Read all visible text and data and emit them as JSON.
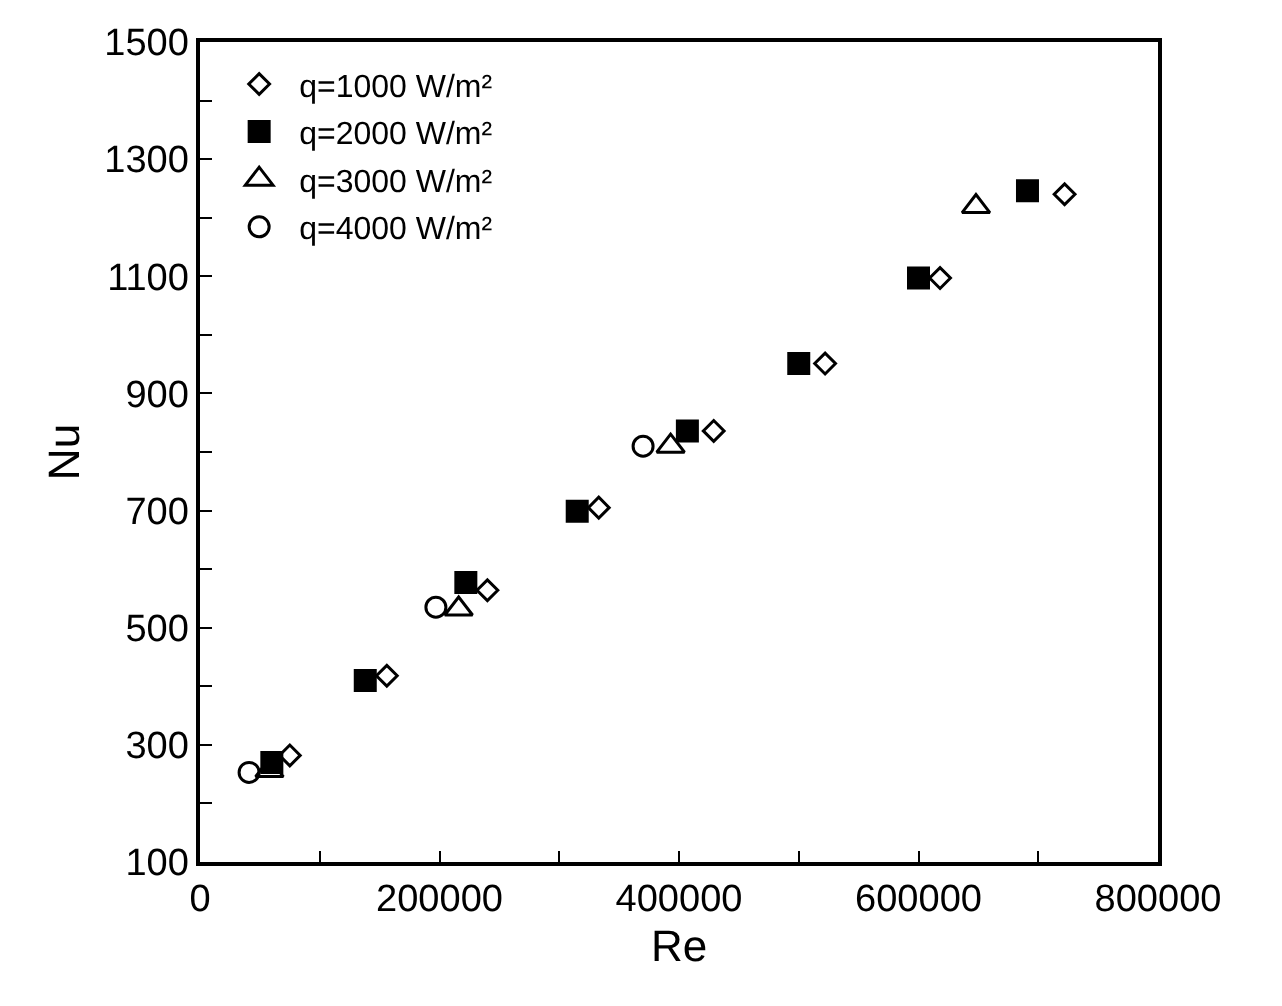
{
  "chart_data": {
    "type": "scatter",
    "xlabel": "Re",
    "ylabel": "Nu",
    "xlim": [
      0,
      800000
    ],
    "ylim": [
      100,
      1500
    ],
    "xticks": [
      0,
      {
        "value": 100000,
        "label": null
      },
      200000,
      {
        "value": 300000,
        "label": null
      },
      400000,
      {
        "value": 500000,
        "label": null
      },
      600000,
      {
        "value": 700000,
        "label": null
      },
      800000
    ],
    "yticks": [
      100,
      {
        "value": 200,
        "label": null
      },
      300,
      {
        "value": 400,
        "label": null
      },
      500,
      {
        "value": 600,
        "label": null
      },
      700,
      {
        "value": 800,
        "label": null
      },
      900,
      {
        "value": 1000,
        "label": null
      },
      1100,
      {
        "value": 1200,
        "label": null
      },
      1300,
      {
        "value": 1400,
        "label": null
      },
      1500
    ],
    "legend": "top left",
    "series": [
      {
        "name": "q=1000 W/m²",
        "color": "#000000",
        "marker": "diamond",
        "x": [
          75000,
          156000,
          240000,
          333000,
          429000,
          522000,
          618000,
          722000
        ],
        "values": [
          282,
          418,
          564,
          705,
          836,
          951,
          1097,
          1240
        ]
      },
      {
        "name": "q=2000 W/m²",
        "color": "#000000",
        "marker": "square",
        "x": [
          60000,
          138000,
          222000,
          315000,
          407000,
          500000,
          600000,
          691000
        ],
        "values": [
          270,
          410,
          577,
          699,
          836,
          951,
          1097,
          1246
        ]
      },
      {
        "name": "q=3000 W/m²",
        "color": "#000000",
        "marker": "triangle",
        "x": [
          58000,
          216000,
          393000,
          648000
        ],
        "values": [
          256,
          532,
          810,
          1219
        ]
      },
      {
        "name": "q=4000 W/m²",
        "color": "#000000",
        "marker": "circle",
        "x": [
          41000,
          197000,
          370000
        ],
        "values": [
          253,
          535,
          810
        ]
      }
    ]
  }
}
